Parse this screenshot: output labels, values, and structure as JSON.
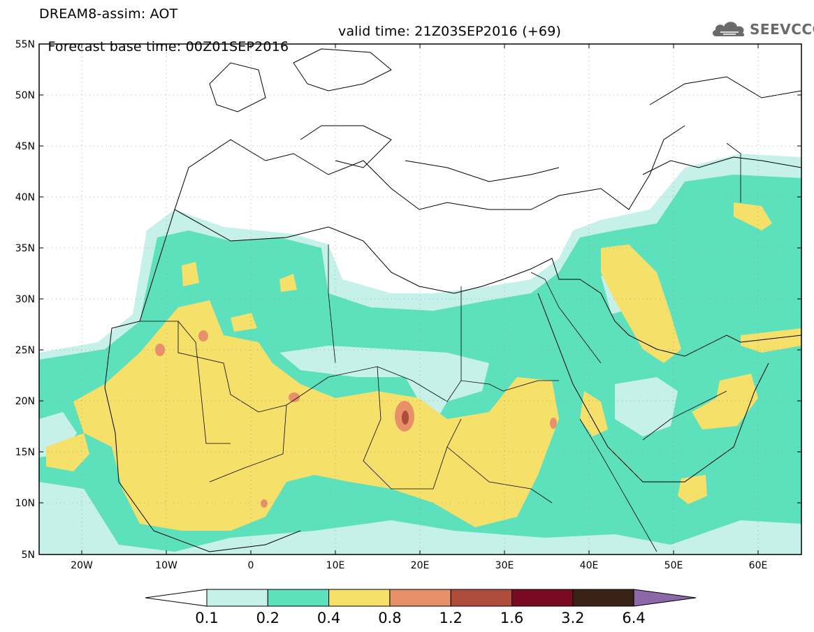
{
  "header": {
    "title_line1": "DREAM8-assim: AOT",
    "title_line2": "Forecast base time: 00Z01SEP2016",
    "valid_time": "valid time: 21Z03SEP2016 (+69)"
  },
  "logo": {
    "text": "SEEVCCC",
    "icon": "cloud-logo-icon"
  },
  "map": {
    "lat_labels": [
      "55N",
      "50N",
      "45N",
      "40N",
      "35N",
      "30N",
      "25N",
      "20N",
      "15N",
      "10N",
      "5N"
    ],
    "lon_labels": [
      "20W",
      "10W",
      "0",
      "10E",
      "20E",
      "30E",
      "40E",
      "50E",
      "60E"
    ],
    "lat_range": [
      5,
      55
    ],
    "lon_range": [
      -25,
      65
    ],
    "grid": "dotted",
    "colors": {
      "c01": "#c6f0ea",
      "c02": "#5de0bc",
      "c04": "#f5e06a",
      "c08": "#e8906a",
      "c12": "#b04c3c",
      "c16": "#7a0a22",
      "c32": "#3a2216",
      "c64": "#8d68a8"
    }
  },
  "colorbar": {
    "labels": [
      "0.1",
      "0.2",
      "0.4",
      "0.8",
      "1.2",
      "1.6",
      "3.2",
      "6.4"
    ],
    "colors": [
      "#c6f0ea",
      "#5de0bc",
      "#f5e06a",
      "#e8906a",
      "#b04c3c",
      "#7a0a22",
      "#3a2216",
      "#8d68a8"
    ]
  }
}
